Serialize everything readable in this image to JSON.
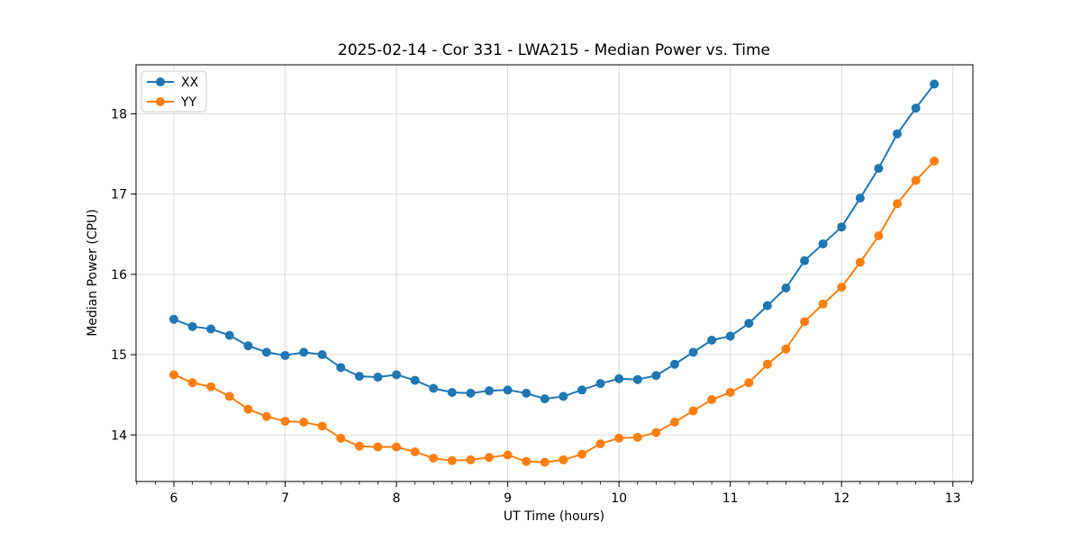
{
  "chart_data": {
    "type": "line",
    "title": "2025-02-14 - Cor 331 - LWA215 - Median Power vs. Time",
    "xlabel": "UT Time (hours)",
    "ylabel": "Median Power (CPU)",
    "xlim": [
      5.66,
      13.18
    ],
    "ylim": [
      13.42,
      18.61
    ],
    "xticks": [
      6,
      7,
      8,
      9,
      10,
      11,
      12,
      13
    ],
    "yticks": [
      14,
      15,
      16,
      17,
      18
    ],
    "minor_xtick_step_hours": 0.1667,
    "grid": true,
    "grid_color": "#d9d9d9",
    "background_color": "#ffffff",
    "legend_position": "upper-left",
    "x": [
      6.0,
      6.167,
      6.333,
      6.5,
      6.667,
      6.833,
      7.0,
      7.167,
      7.333,
      7.5,
      7.667,
      7.833,
      8.0,
      8.167,
      8.333,
      8.5,
      8.667,
      8.833,
      9.0,
      9.167,
      9.333,
      9.5,
      9.667,
      9.833,
      10.0,
      10.167,
      10.333,
      10.5,
      10.667,
      10.833,
      11.0,
      11.167,
      11.333,
      11.5,
      11.667,
      11.833,
      12.0,
      12.167,
      12.333,
      12.5,
      12.667,
      12.833
    ],
    "series": [
      {
        "name": "XX",
        "color": "#1f77b4",
        "values": [
          15.44,
          15.35,
          15.32,
          15.24,
          15.11,
          15.03,
          14.99,
          15.03,
          15.0,
          14.84,
          14.73,
          14.72,
          14.75,
          14.68,
          14.58,
          14.53,
          14.52,
          14.55,
          14.56,
          14.52,
          14.45,
          14.48,
          14.56,
          14.64,
          14.7,
          14.69,
          14.74,
          14.88,
          15.03,
          15.18,
          15.23,
          15.39,
          15.61,
          15.83,
          16.17,
          16.38,
          16.59,
          16.95,
          17.32,
          17.75,
          18.07,
          18.37
        ]
      },
      {
        "name": "YY",
        "color": "#ff7f0e",
        "values": [
          14.75,
          14.65,
          14.6,
          14.48,
          14.32,
          14.23,
          14.17,
          14.16,
          14.11,
          13.96,
          13.86,
          13.85,
          13.85,
          13.79,
          13.71,
          13.68,
          13.69,
          13.72,
          13.75,
          13.67,
          13.66,
          13.69,
          13.76,
          13.89,
          13.96,
          13.97,
          14.03,
          14.16,
          14.3,
          14.44,
          14.53,
          14.65,
          14.88,
          15.07,
          15.41,
          15.63,
          15.84,
          16.15,
          16.48,
          16.88,
          17.17,
          17.41
        ]
      }
    ]
  }
}
